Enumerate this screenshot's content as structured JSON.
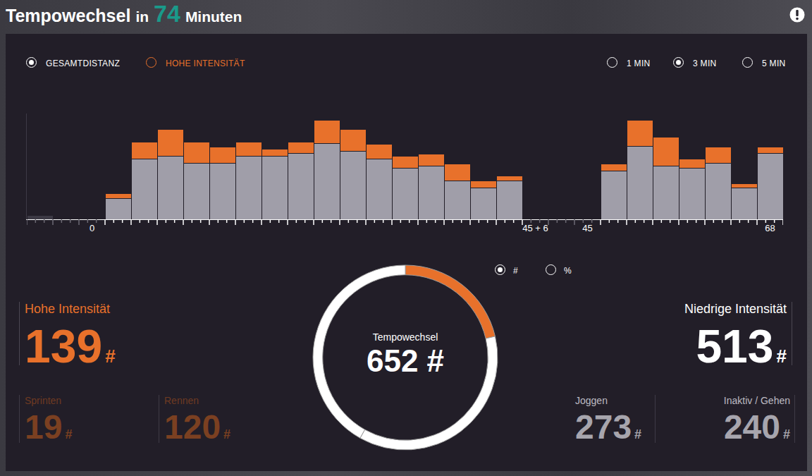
{
  "header": {
    "title": [
      {
        "text": "Tempowechsel"
      },
      {
        "text": "in"
      },
      {
        "text": "74",
        "emphasis": true
      },
      {
        "text": "Minuten"
      }
    ]
  },
  "controls": {
    "series_selected": 0,
    "bin_options": [
      "1 MIN",
      "3 MIN",
      "5 MIN"
    ],
    "bin_selected": 1,
    "unit_options": [
      "#",
      "%"
    ],
    "unit_selected": 0
  },
  "chart_data": [
    {
      "type": "bar",
      "stacked": true,
      "grid": false,
      "tick_labels": "x",
      "categories": [
        null,
        null,
        "0",
        null,
        null,
        null,
        null,
        null,
        null,
        null,
        null,
        null,
        null,
        null,
        null,
        null,
        null,
        null,
        null,
        "45 + 6",
        null,
        "45",
        null,
        null,
        null,
        null,
        null,
        null,
        "68"
      ],
      "ylim": [
        0,
        150
      ],
      "yticks": [],
      "series": [
        {
          "name": "GESAMTDISTANZ",
          "colors": [
            "#3c3944",
            "#a09ea9",
            "#a09ea9",
            "#a09ea9",
            "#a09ea9",
            "#a09ea9",
            "#a09ea9",
            "#a09ea9",
            "#a09ea9",
            "#a09ea9",
            "#a09ea9",
            "#a09ea9",
            "#a09ea9",
            "#a09ea9",
            "#a09ea9",
            "#a09ea9",
            "#a09ea9",
            "#a09ea9",
            "#a09ea9",
            "#a09ea9",
            "#a09ea9",
            "#a09ea9",
            "#a09ea9",
            "#a09ea9",
            "#a09ea9",
            "#a09ea9",
            "#a09ea9",
            "#a09ea9",
            "#a09ea9"
          ],
          "values": [
            6,
            0,
            0,
            30,
            86,
            90,
            80,
            80,
            90,
            90,
            94,
            108,
            97,
            86,
            73,
            76,
            55,
            45,
            55,
            0,
            0,
            0,
            69,
            104,
            76,
            73,
            80,
            45,
            94
          ]
        },
        {
          "name": "HOHE INTENSITÄT",
          "color": "#e8712b",
          "values": [
            0,
            0,
            0,
            7,
            24,
            38,
            30,
            23,
            20,
            10,
            16,
            33,
            31,
            21,
            17,
            17,
            24,
            10,
            7,
            0,
            0,
            0,
            10,
            37,
            41,
            13,
            23,
            6,
            9
          ]
        }
      ]
    },
    {
      "type": "pie",
      "title": "Tempowechsel",
      "total": 652,
      "data_labels": false,
      "categories": [
        "Hohe Intensität",
        "Joggen",
        "Inaktiv / Gehen"
      ],
      "values": [
        139,
        273,
        240
      ],
      "colors": [
        "#e8712b",
        "#ffffff",
        "#ffffff"
      ]
    }
  ],
  "stats": {
    "unit": "#",
    "high": {
      "label": "Hohe Intensität",
      "value": 139,
      "parts": [
        {
          "label": "Sprinten",
          "value": 19
        },
        {
          "label": "Rennen",
          "value": 120
        }
      ]
    },
    "low": {
      "label": "Niedrige Intensität",
      "value": 513,
      "parts": [
        {
          "label": "Joggen",
          "value": 273
        },
        {
          "label": "Inaktiv / Gehen",
          "value": 240
        }
      ]
    }
  }
}
